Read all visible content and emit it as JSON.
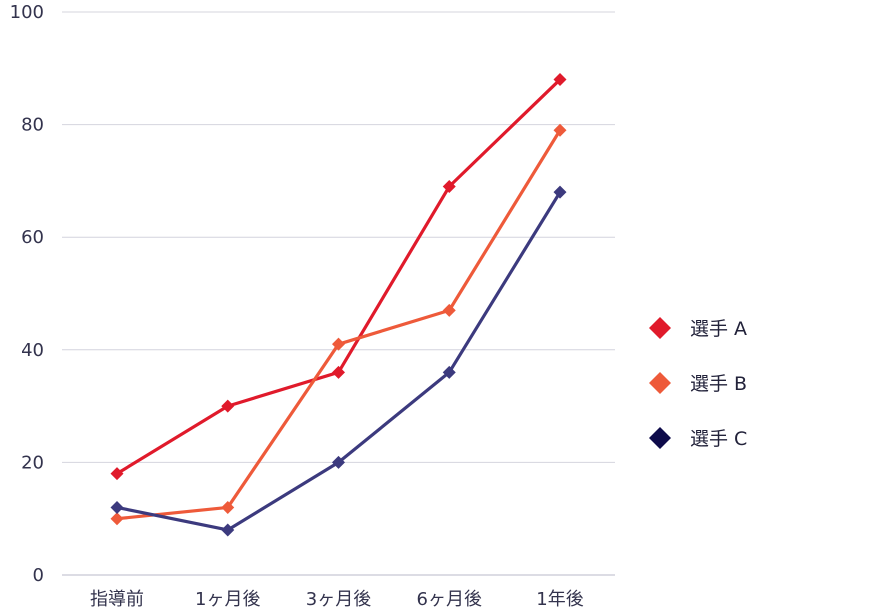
{
  "chart_data": {
    "type": "line",
    "categories": [
      "指導前",
      "1ヶ月後",
      "3ヶ月後",
      "6ヶ月後",
      "1年後"
    ],
    "series": [
      {
        "name": "選手 A",
        "color": "#E01A2B",
        "marker": "diamond",
        "values": [
          18,
          30,
          36,
          69,
          88
        ]
      },
      {
        "name": "選手 B",
        "color": "#EE5A3A",
        "marker": "diamond",
        "values": [
          10,
          12,
          41,
          47,
          79
        ]
      },
      {
        "name": "選手 C",
        "color": "#3C3A7E",
        "legend_color": "#0E0B4A",
        "marker": "diamond",
        "values": [
          12,
          8,
          20,
          36,
          68
        ]
      }
    ],
    "yticks": [
      0,
      20,
      40,
      60,
      80,
      100
    ],
    "ylim": [
      0,
      100
    ],
    "grid": true,
    "legend": "right",
    "title": "",
    "xlabel": "",
    "ylabel": ""
  }
}
